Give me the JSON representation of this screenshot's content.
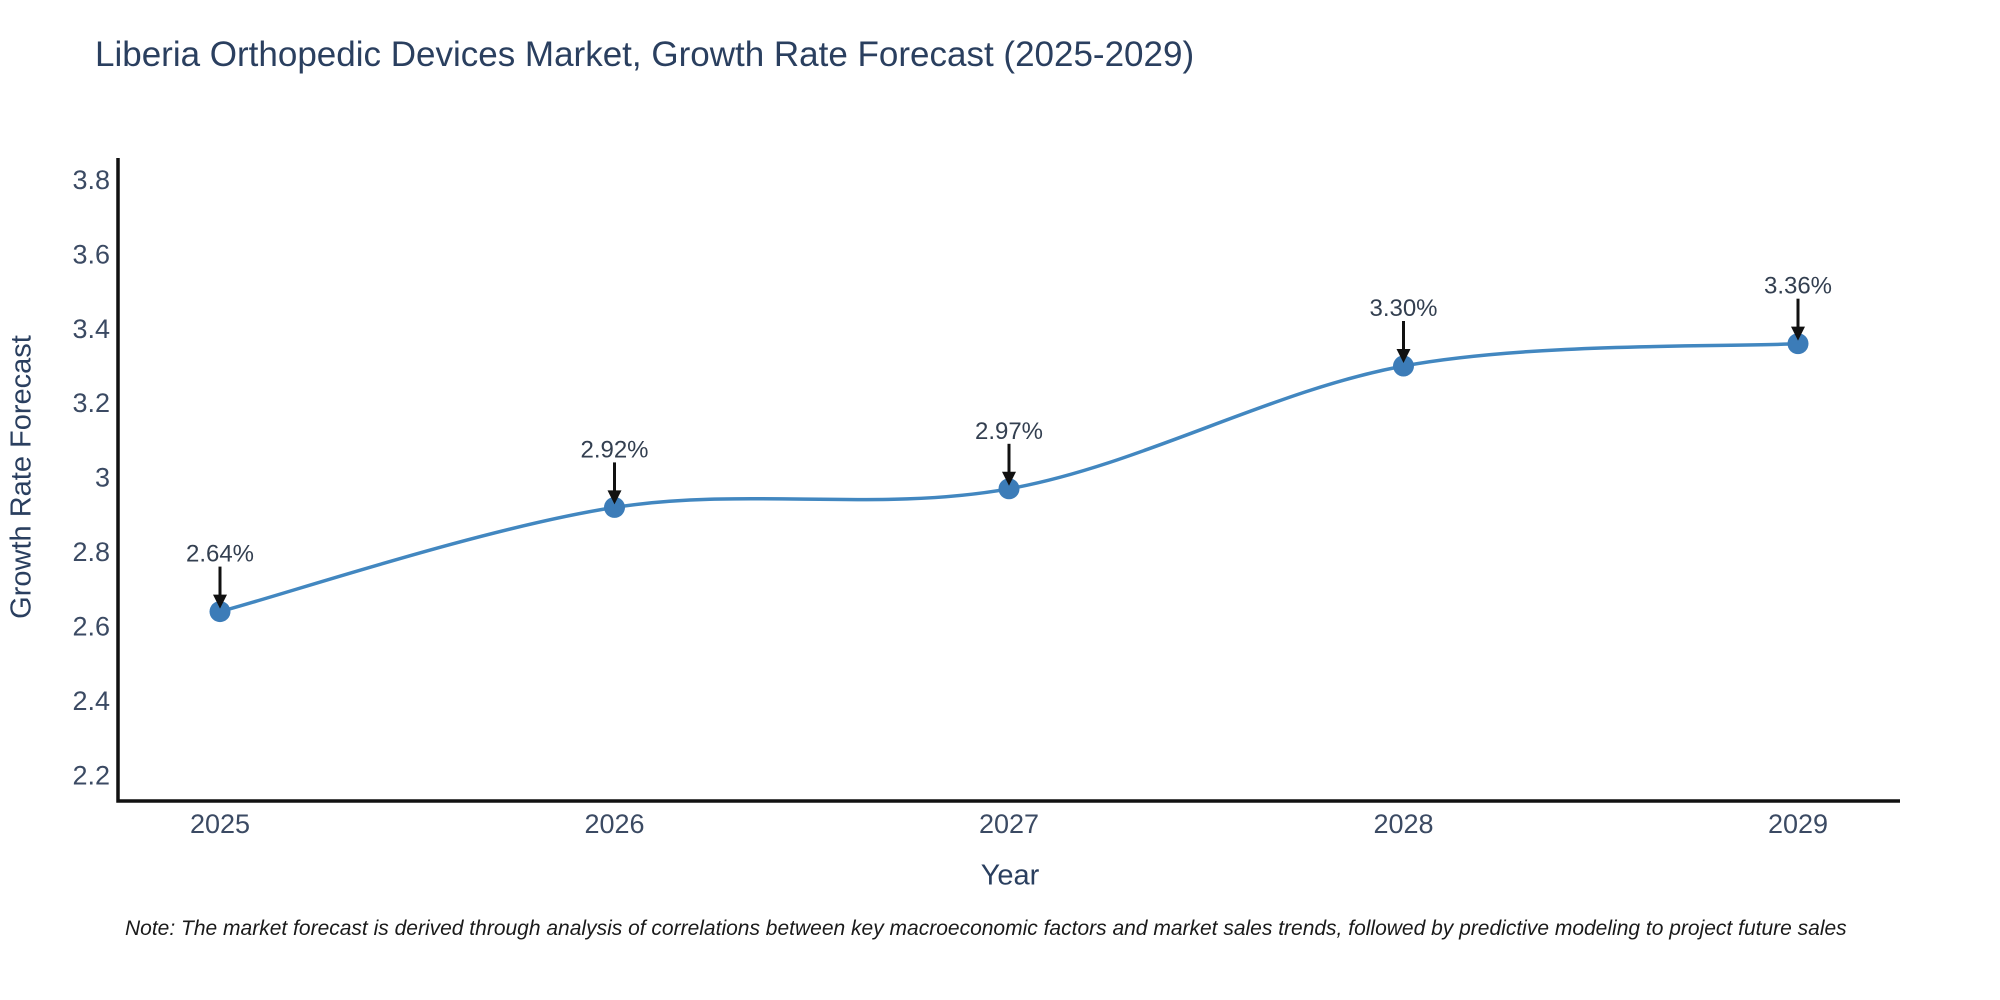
{
  "title": "Liberia Orthopedic Devices Market, Growth Rate Forecast (2025-2029)",
  "note": "Note: The market forecast is derived through analysis of correlations between key macroeconomic factors and market sales trends, followed by predictive modeling to project future sales",
  "chart_data": {
    "type": "line",
    "line_shape": "spline",
    "title": "Liberia Orthopedic Devices Market, Growth Rate Forecast (2025-2029)",
    "xlabel": "Year",
    "ylabel": "Growth Rate Forecast",
    "categories": [
      2025,
      2026,
      2027,
      2028,
      2029
    ],
    "values": [
      2.64,
      2.92,
      2.97,
      3.3,
      3.36
    ],
    "point_labels": [
      "2.64%",
      "2.92%",
      "2.97%",
      "3.30%",
      "3.36%"
    ],
    "xticks": [
      "2025",
      "2026",
      "2027",
      "2028",
      "2029"
    ],
    "yticks": [
      "2.2",
      "2.4",
      "2.6",
      "2.8",
      "3",
      "3.2",
      "3.4",
      "3.6",
      "3.8"
    ],
    "ytick_values": [
      2.2,
      2.4,
      2.6,
      2.8,
      3.0,
      3.2,
      3.4,
      3.6,
      3.8
    ],
    "ylim": [
      2.131,
      3.859
    ],
    "grid": false,
    "legend": "none",
    "annotation_style": "black down-arrows pointing at each marker with percent labels above",
    "colors": {
      "line": "#4287c0",
      "marker": "#3c7cb8",
      "arrow": "#111111",
      "axis": "#111111",
      "title": "#2a3f5f",
      "tick": "#3b4a63",
      "annotation": "#333f50",
      "note": "#1a1a1a",
      "background": "#ffffff"
    }
  }
}
